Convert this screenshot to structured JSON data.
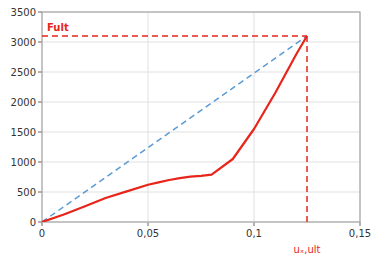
{
  "chart_data": {
    "type": "line",
    "xlim": [
      0,
      0.15
    ],
    "ylim": [
      0,
      3500
    ],
    "xticks": [
      0,
      {
        "value": 0.05,
        "label": "0,05"
      },
      {
        "value": 0.1,
        "label": "0,1"
      },
      {
        "value": 0.15,
        "label": "0,15"
      }
    ],
    "yticks": [
      0,
      500,
      1000,
      1500,
      2000,
      2500,
      3000,
      3500
    ],
    "grid": true,
    "series": [
      {
        "x": [
          0,
          0.125
        ],
        "values": [
          0,
          3100
        ],
        "color": "#5b9bd5",
        "line_style": "dashed"
      },
      {
        "x": [
          0,
          0.01,
          0.02,
          0.03,
          0.04,
          0.05,
          0.055,
          0.06,
          0.065,
          0.07,
          0.075,
          0.08,
          0.09,
          0.1,
          0.11,
          0.12,
          0.125
        ],
        "values": [
          0,
          120,
          260,
          400,
          510,
          620,
          660,
          700,
          730,
          755,
          770,
          790,
          1050,
          1550,
          2150,
          2800,
          3100
        ],
        "color": "#e8251a",
        "line_style": "solid"
      },
      {
        "x": [
          0,
          0.125
        ],
        "values": [
          3100,
          3100
        ],
        "color": "#e8251a",
        "line_style": "dashed"
      },
      {
        "x": [
          0.125,
          0.125
        ],
        "values": [
          0,
          3100
        ],
        "color": "#e8251a",
        "line_style": "dashed"
      }
    ],
    "annotations": [
      {
        "text": "Fult",
        "y": 3100,
        "color": "#e8251a"
      },
      {
        "text": "uₓ,ult",
        "x": 0.125,
        "color": "#e8251a"
      }
    ]
  }
}
